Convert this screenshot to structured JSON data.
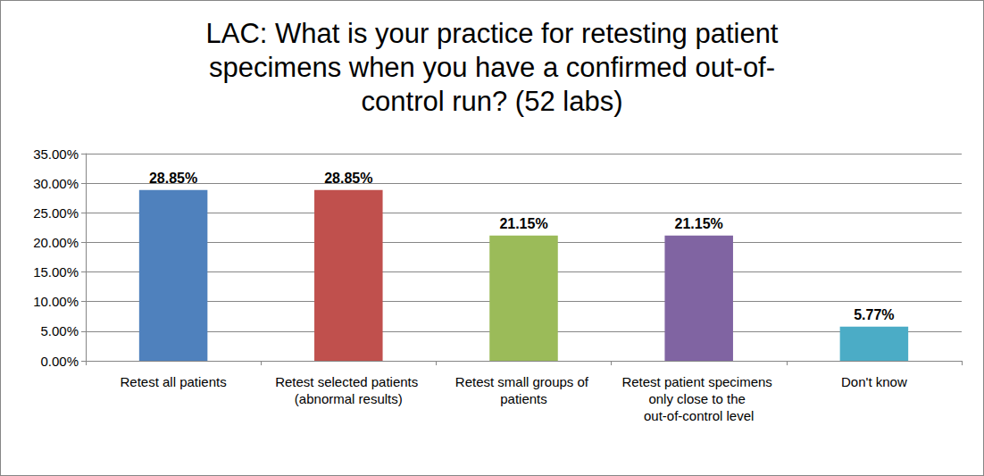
{
  "chart_data": {
    "type": "bar",
    "title": "LAC: What is your practice for retesting patient\nspecimens when you have a confirmed out-of-\ncontrol run? (52 labs)",
    "categories": [
      "Retest all patients",
      "Retest selected patients (abnormal results)",
      "Retest small groups of patients",
      "Retest patient specimens only close to the out-of-control level",
      "Don't know"
    ],
    "values": [
      28.85,
      28.85,
      21.15,
      21.15,
      5.77
    ],
    "value_labels": [
      "28.85%",
      "28.85%",
      "21.15%",
      "21.15%",
      "5.77%"
    ],
    "colors": [
      "#4f81bd",
      "#c0504d",
      "#9bbb59",
      "#8064a2",
      "#4bacc6"
    ],
    "ylim": [
      0,
      35
    ],
    "yticks": [
      {
        "value": 0,
        "label": "0.00%"
      },
      {
        "value": 5,
        "label": "5.00%"
      },
      {
        "value": 10,
        "label": "10.00%"
      },
      {
        "value": 15,
        "label": "15.00%"
      },
      {
        "value": 20,
        "label": "20.00%"
      },
      {
        "value": 25,
        "label": "25.00%"
      },
      {
        "value": 30,
        "label": "30.00%"
      },
      {
        "value": 35,
        "label": "35.00%"
      }
    ],
    "grid": true,
    "data_labels": true
  }
}
